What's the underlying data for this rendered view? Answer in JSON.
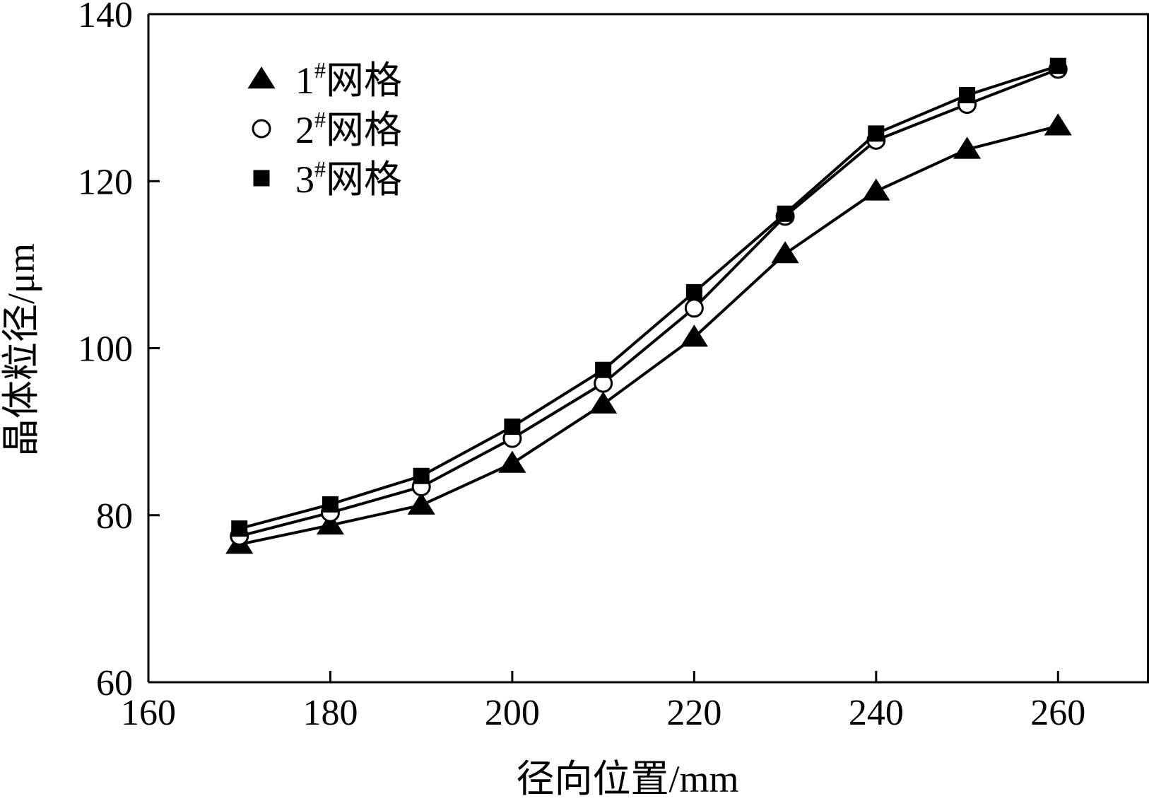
{
  "chart_data": {
    "type": "line",
    "title": "",
    "xlabel": "径向位置/mm",
    "ylabel": "晶体粒径/μm",
    "xlim": [
      160,
      270
    ],
    "ylim": [
      60,
      140
    ],
    "x_ticks": [
      160,
      180,
      200,
      220,
      240,
      260
    ],
    "y_ticks": [
      60,
      80,
      100,
      120,
      140
    ],
    "x_tick_labels": [
      "160",
      "180",
      "200",
      "220",
      "240",
      "260"
    ],
    "y_tick_labels": [
      "60",
      "80",
      "100",
      "120",
      "140"
    ],
    "grid": false,
    "legend_position": "top-left",
    "x": [
      170,
      180,
      190,
      200,
      210,
      220,
      230,
      240,
      250,
      260
    ],
    "series": [
      {
        "name": "1#网格",
        "legend_num": "1",
        "legend_sup": "#",
        "legend_word": "网格",
        "marker": "triangle",
        "values": [
          76.5,
          78.8,
          81.2,
          86.2,
          93.3,
          101.3,
          111.3,
          118.8,
          123.8,
          126.6
        ]
      },
      {
        "name": "2#网格",
        "legend_num": "2",
        "legend_sup": "#",
        "legend_word": "网格",
        "marker": "circle",
        "values": [
          77.5,
          80.3,
          83.4,
          89.2,
          95.8,
          104.8,
          115.8,
          124.9,
          129.2,
          133.4
        ]
      },
      {
        "name": "3#网格",
        "legend_num": "3",
        "legend_sup": "#",
        "legend_word": "网格",
        "marker": "square",
        "values": [
          78.4,
          81.3,
          84.7,
          90.6,
          97.4,
          106.7,
          116.1,
          125.7,
          130.3,
          133.8
        ]
      }
    ],
    "colors": {
      "line": "#000000",
      "background": "#ffffff"
    }
  }
}
